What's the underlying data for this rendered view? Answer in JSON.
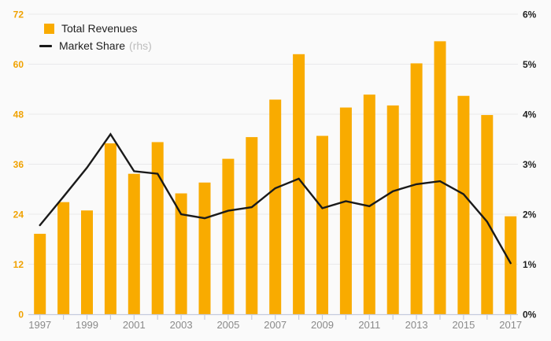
{
  "chart_data": {
    "type": "bar",
    "subtype": "bar-line-combo",
    "title": "",
    "categories": [
      "1997",
      "1998",
      "1999",
      "2000",
      "2001",
      "2002",
      "2003",
      "2004",
      "2005",
      "2006",
      "2007",
      "2008",
      "2009",
      "2010",
      "2011",
      "2012",
      "2013",
      "2014",
      "2015",
      "2016",
      "2017"
    ],
    "series": [
      {
        "name": "Total Revenues",
        "type": "bar",
        "axis": "left",
        "values": [
          19.3,
          26.9,
          24.9,
          41.0,
          33.7,
          41.3,
          29.0,
          31.6,
          37.3,
          42.5,
          51.5,
          62.4,
          42.8,
          49.6,
          52.7,
          50.1,
          60.2,
          65.5,
          52.4,
          47.8,
          23.5
        ]
      },
      {
        "name": "Market Share",
        "type": "line",
        "axis": "right",
        "values": [
          1.78,
          2.35,
          2.93,
          3.6,
          2.86,
          2.81,
          2.0,
          1.92,
          2.07,
          2.14,
          2.52,
          2.71,
          2.12,
          2.26,
          2.16,
          2.46,
          2.6,
          2.66,
          2.4,
          1.85,
          1.02
        ]
      }
    ],
    "left_axis": {
      "ticks": [
        "0",
        "12",
        "24",
        "36",
        "48",
        "60",
        "72"
      ],
      "range": [
        0,
        72
      ]
    },
    "right_axis": {
      "ticks": [
        "0%",
        "1%",
        "2%",
        "3%",
        "4%",
        "5%",
        "6%"
      ],
      "range": [
        0,
        6
      ]
    },
    "x_axis": {
      "visible_tick_labels": [
        "1997",
        "1999",
        "2001",
        "2003",
        "2005",
        "2007",
        "2009",
        "2011",
        "2013",
        "2015",
        "2017"
      ],
      "tick_every": 1,
      "label_every": 2
    },
    "legend": {
      "position": "top-left",
      "items": [
        {
          "label": "Total Revenues",
          "swatch": "square"
        },
        {
          "label": "Market Share",
          "note": "(rhs)",
          "swatch": "line"
        }
      ]
    },
    "grid": "horizontal"
  },
  "colors": {
    "background": "#fafafa",
    "bar": "#F9AB00",
    "line": "#1a1a1a",
    "grid": "#e9e9eb",
    "axis": "#c5cbde",
    "left_tick_text": "#F0A202",
    "right_tick_text": "#1f1f1f",
    "x_tick_text": "#8a8a8a",
    "legend_text": "#1f1f1f",
    "legend_note": "#bdbdbd"
  }
}
